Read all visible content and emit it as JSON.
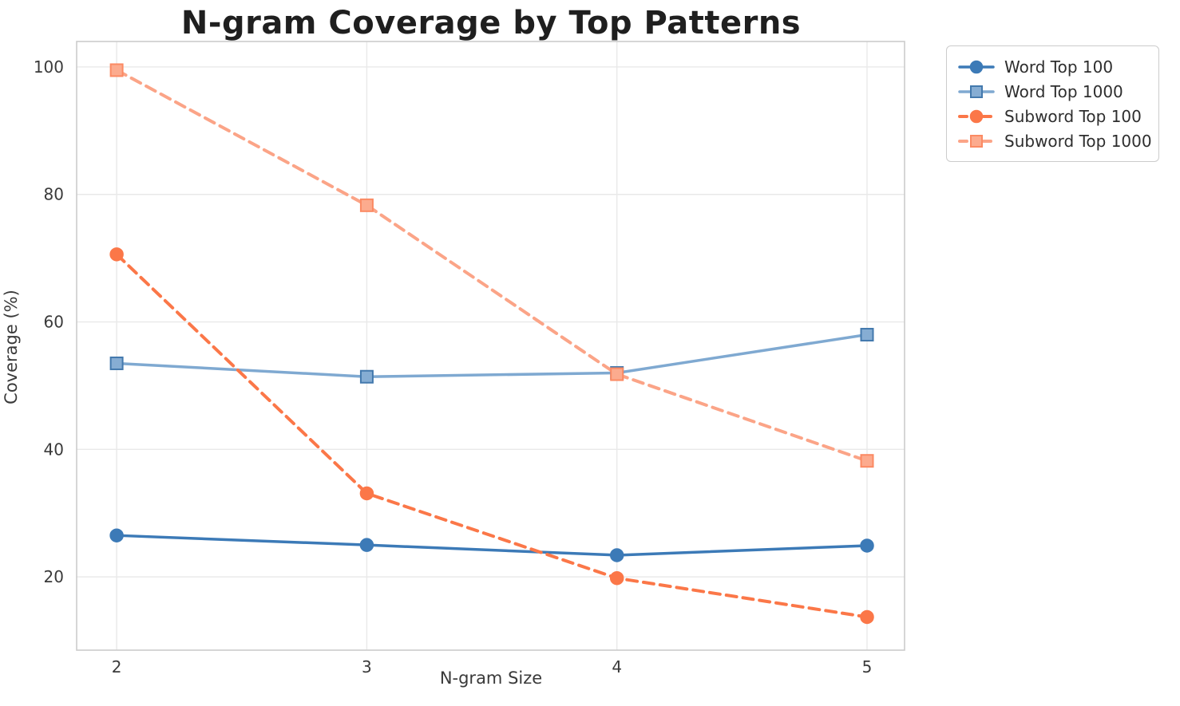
{
  "chart_data": {
    "type": "line",
    "title": "N-gram Coverage by Top Patterns",
    "xlabel": "N-gram Size",
    "ylabel": "Coverage (%)",
    "x": [
      2,
      3,
      4,
      5
    ],
    "xtick_labels": [
      "2",
      "3",
      "4",
      "5"
    ],
    "ytick_values": [
      20,
      40,
      60,
      80,
      100
    ],
    "ytick_labels": [
      "20",
      "40",
      "60",
      "80",
      "100"
    ],
    "xlim": [
      1.84,
      5.15
    ],
    "ylim": [
      8.5,
      104
    ],
    "grid": true,
    "grid_color": "#e9e9e9",
    "spine_color": "#cccccc",
    "legend_position": "outside-top-right",
    "series": [
      {
        "name": "Word Top 100",
        "values": [
          26.5,
          25.0,
          23.4,
          24.9
        ],
        "color": "#3c7ab7",
        "marker_fill": "#3c7ab7",
        "marker_edge": "#3c7ab7",
        "line_style": "solid",
        "marker": "circle"
      },
      {
        "name": "Word Top 1000",
        "values": [
          53.5,
          51.4,
          52.0,
          58.0
        ],
        "color": "#7fa9d1",
        "marker_fill": "#86add3",
        "marker_edge": "#4379ad",
        "line_style": "solid",
        "marker": "square"
      },
      {
        "name": "Subword Top 100",
        "values": [
          70.6,
          33.1,
          19.8,
          13.7
        ],
        "color": "#fb7748",
        "marker_fill": "#fb7748",
        "marker_edge": "#fb7748",
        "line_style": "dashed",
        "marker": "circle"
      },
      {
        "name": "Subword Top 1000",
        "values": [
          99.5,
          78.3,
          51.8,
          38.2
        ],
        "color": "#fba487",
        "marker_fill": "#fcab8e",
        "marker_edge": "#fb8a63",
        "line_style": "dashed",
        "marker": "square"
      }
    ]
  }
}
